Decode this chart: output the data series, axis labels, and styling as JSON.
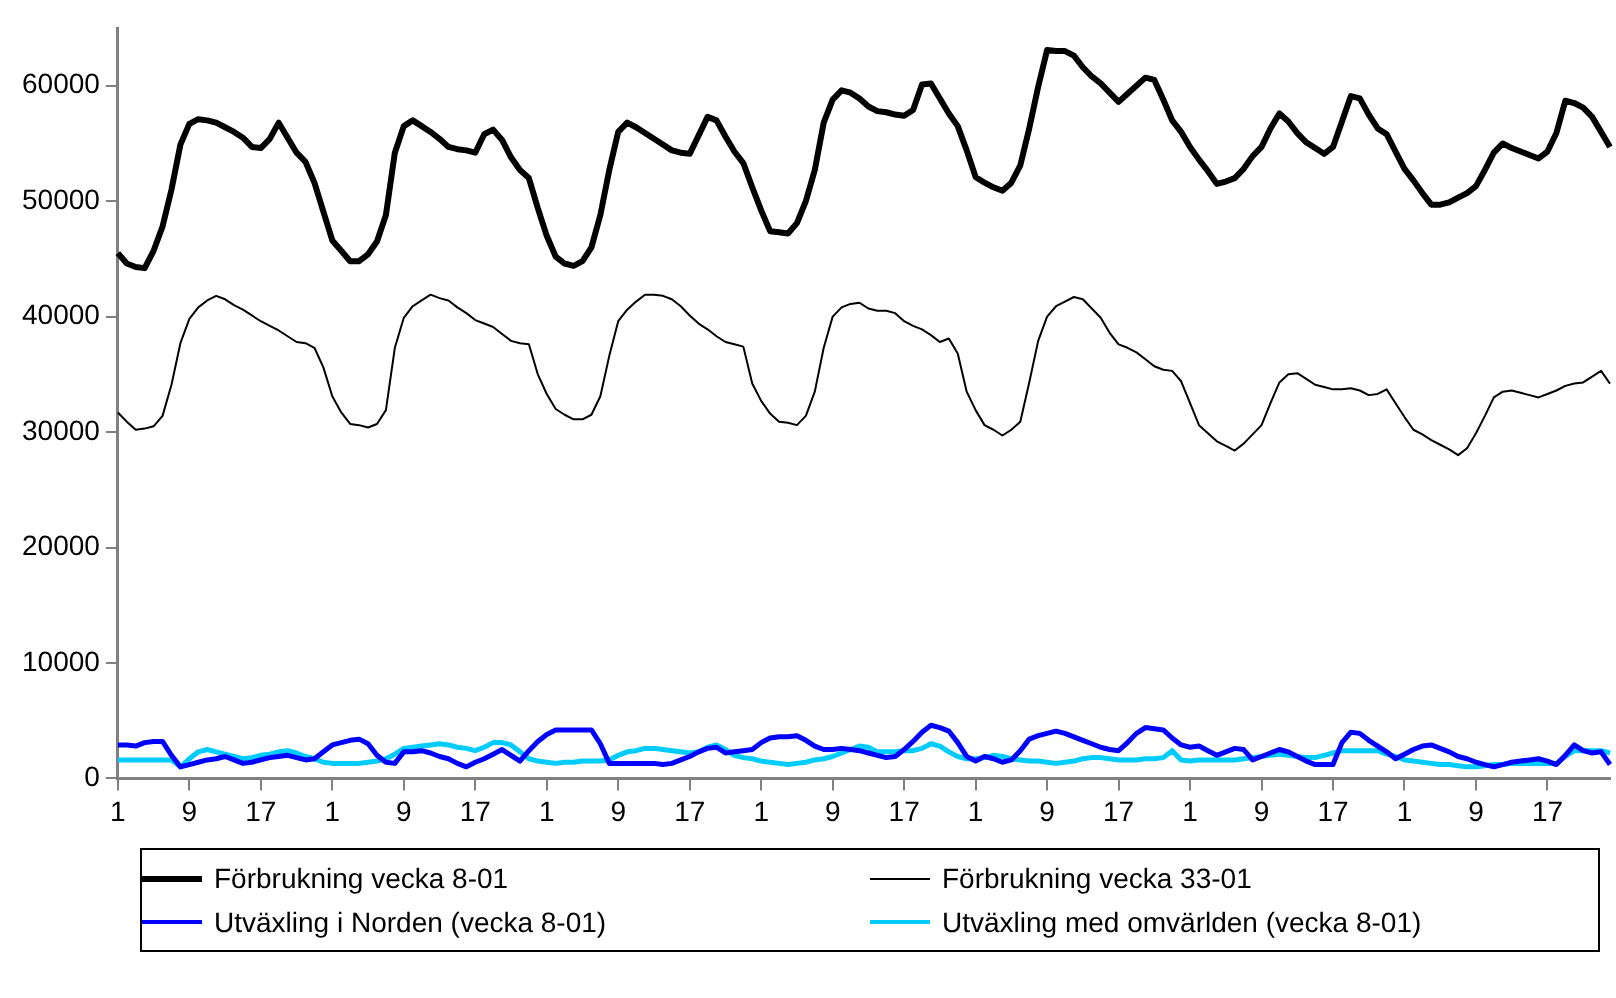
{
  "chart_data": {
    "type": "line",
    "categories": [
      "1",
      null,
      null,
      null,
      null,
      null,
      null,
      null,
      "9",
      null,
      null,
      null,
      null,
      null,
      null,
      null,
      "17",
      null,
      null,
      null,
      null,
      null,
      null,
      null,
      "1",
      null,
      null,
      null,
      null,
      null,
      null,
      null,
      "9",
      null,
      null,
      null,
      null,
      null,
      null,
      null,
      "17",
      null,
      null,
      null,
      null,
      null,
      null,
      null,
      "1",
      null,
      null,
      null,
      null,
      null,
      null,
      null,
      "9",
      null,
      null,
      null,
      null,
      null,
      null,
      null,
      "17",
      null,
      null,
      null,
      null,
      null,
      null,
      null,
      "1",
      null,
      null,
      null,
      null,
      null,
      null,
      null,
      "9",
      null,
      null,
      null,
      null,
      null,
      null,
      null,
      "17",
      null,
      null,
      null,
      null,
      null,
      null,
      null,
      "1",
      null,
      null,
      null,
      null,
      null,
      null,
      null,
      "9",
      null,
      null,
      null,
      null,
      null,
      null,
      null,
      "17",
      null,
      null,
      null,
      null,
      null,
      null,
      null,
      "1",
      null,
      null,
      null,
      null,
      null,
      null,
      null,
      "9",
      null,
      null,
      null,
      null,
      null,
      null,
      null,
      "17",
      null,
      null,
      null,
      null,
      null,
      null,
      null,
      "1",
      null,
      null,
      null,
      null,
      null,
      null,
      null,
      "9",
      null,
      null,
      null,
      null,
      null,
      null,
      null,
      "17",
      null,
      null,
      null,
      null,
      null,
      null,
      null
    ],
    "ylim": [
      0,
      65000
    ],
    "yticks": [
      0,
      10000,
      20000,
      30000,
      40000,
      50000,
      60000
    ],
    "grid": false,
    "legend": "bottom",
    "series": [
      {
        "name": "Förbrukning vecka 8-01",
        "color": "#000000",
        "values": [
          45500,
          44600,
          44300,
          44200,
          45700,
          47800,
          51000,
          54900,
          56700,
          57100,
          57000,
          56800,
          56400,
          56000,
          55500,
          54700,
          54600,
          55400,
          56800,
          55500,
          54200,
          53400,
          51600,
          49100,
          46600,
          45700,
          44800,
          44800,
          45400,
          46500,
          48800,
          54200,
          56500,
          57000,
          56500,
          56000,
          55400,
          54700,
          54500,
          54400,
          54200,
          55800,
          56200,
          55300,
          53800,
          52700,
          52000,
          49400,
          47000,
          45200,
          44600,
          44400,
          44800,
          46000,
          48800,
          52700,
          56000,
          56800,
          56400,
          55900,
          55400,
          54900,
          54400,
          54200,
          54100,
          55700,
          57300,
          57000,
          55600,
          54300,
          53300,
          51200,
          49200,
          47400,
          47300,
          47200,
          48100,
          50000,
          52700,
          56800,
          58800,
          59600,
          59400,
          58900,
          58200,
          57800,
          57700,
          57500,
          57400,
          57900,
          60100,
          60200,
          58900,
          57600,
          56500,
          54400,
          52100,
          51600,
          51200,
          50900,
          51600,
          53100,
          56300,
          59900,
          63100,
          63000,
          63000,
          62600,
          61600,
          60800,
          60200,
          59400,
          58600,
          59300,
          60000,
          60700,
          60500,
          58800,
          57000,
          56000,
          54700,
          53600,
          52600,
          51500,
          51700,
          52000,
          52800,
          53900,
          54700,
          56300,
          57600,
          56900,
          55900,
          55100,
          54600,
          54100,
          54700,
          56900,
          59100,
          58900,
          57500,
          56300,
          55800,
          54300,
          52800,
          51800,
          50700,
          49700,
          49700,
          49900,
          50300,
          50700,
          51300,
          52700,
          54200,
          55000,
          54600,
          54300,
          54000,
          53700,
          54300,
          55900,
          58700,
          58500,
          58100,
          57300,
          56000,
          54700
        ]
      },
      {
        "name": "Förbrukning vecka 33-01",
        "color": "#000000",
        "values": [
          31700,
          30900,
          30200,
          30300,
          30500,
          31400,
          34100,
          37700,
          39800,
          40800,
          41400,
          41800,
          41500,
          41000,
          40600,
          40100,
          39600,
          39200,
          38800,
          38300,
          37800,
          37700,
          37300,
          35600,
          33100,
          31700,
          30700,
          30600,
          30400,
          30700,
          31900,
          37300,
          39900,
          40900,
          41400,
          41900,
          41600,
          41400,
          40800,
          40300,
          39700,
          39400,
          39100,
          38500,
          37900,
          37700,
          37600,
          35000,
          33300,
          32000,
          31500,
          31100,
          31100,
          31500,
          33100,
          36600,
          39600,
          40600,
          41300,
          41900,
          41900,
          41800,
          41500,
          40900,
          40100,
          39400,
          38900,
          38300,
          37800,
          37600,
          37400,
          34200,
          32700,
          31600,
          30900,
          30800,
          30600,
          31400,
          33500,
          37300,
          40000,
          40800,
          41100,
          41200,
          40700,
          40500,
          40500,
          40300,
          39600,
          39200,
          38900,
          38400,
          37800,
          38100,
          36800,
          33500,
          31900,
          30600,
          30200,
          29700,
          30200,
          30900,
          34300,
          37900,
          40000,
          40900,
          41300,
          41700,
          41500,
          40700,
          39900,
          38600,
          37600,
          37300,
          36900,
          36300,
          35700,
          35400,
          35300,
          34400,
          32500,
          30600,
          29900,
          29200,
          28800,
          28400,
          29000,
          29800,
          30600,
          32500,
          34300,
          35000,
          35100,
          34600,
          34100,
          33900,
          33700,
          33700,
          33800,
          33600,
          33200,
          33300,
          33700,
          32500,
          31300,
          30200,
          29800,
          29300,
          28900,
          28500,
          28000,
          28600,
          29900,
          31400,
          33000,
          33500,
          33600,
          33400,
          33200,
          33000,
          33300,
          33600,
          34000,
          34200,
          34300,
          34800,
          35300,
          34200
        ]
      },
      {
        "name": "Utväxling i Norden (vecka 8-01)",
        "color": "#0000ff",
        "values": [
          2900,
          2900,
          2800,
          3100,
          3200,
          3200,
          2000,
          1000,
          1200,
          1400,
          1600,
          1700,
          1900,
          1600,
          1300,
          1400,
          1600,
          1800,
          1900,
          2000,
          1800,
          1600,
          1700,
          2300,
          2900,
          3100,
          3300,
          3400,
          3000,
          2000,
          1400,
          1300,
          2300,
          2300,
          2400,
          2200,
          1900,
          1700,
          1300,
          1000,
          1400,
          1700,
          2100,
          2500,
          2000,
          1500,
          2400,
          3200,
          3800,
          4200,
          4200,
          4200,
          4200,
          4200,
          3000,
          1300,
          1300,
          1300,
          1300,
          1300,
          1300,
          1200,
          1300,
          1600,
          1900,
          2300,
          2600,
          2700,
          2200,
          2300,
          2400,
          2500,
          3100,
          3500,
          3600,
          3600,
          3700,
          3300,
          2800,
          2500,
          2500,
          2600,
          2500,
          2400,
          2200,
          2000,
          1800,
          1900,
          2500,
          3200,
          4000,
          4600,
          4400,
          4100,
          3100,
          1900,
          1500,
          1900,
          1700,
          1400,
          1600,
          2400,
          3400,
          3700,
          3900,
          4100,
          3900,
          3600,
          3300,
          3000,
          2700,
          2500,
          2400,
          3100,
          3900,
          4400,
          4300,
          4200,
          3500,
          2900,
          2700,
          2800,
          2400,
          2000,
          2300,
          2600,
          2500,
          1600,
          1900,
          2200,
          2500,
          2300,
          1900,
          1500,
          1200,
          1200,
          1200,
          3100,
          4000,
          3900,
          3300,
          2800,
          2300,
          1700,
          2100,
          2500,
          2800,
          2900,
          2600,
          2300,
          1900,
          1700,
          1400,
          1200,
          1000,
          1200,
          1400,
          1500,
          1600,
          1700,
          1500,
          1200,
          2000,
          2900,
          2400,
          2200,
          2300,
          1200
        ]
      },
      {
        "name": "Utväxling med omvärlden (vecka 8-01)",
        "color": "#00ccff",
        "values": [
          1600,
          1600,
          1600,
          1600,
          1600,
          1600,
          1600,
          1000,
          1700,
          2300,
          2500,
          2300,
          2100,
          1900,
          1700,
          1800,
          2000,
          2100,
          2300,
          2400,
          2200,
          1900,
          1700,
          1400,
          1300,
          1300,
          1300,
          1300,
          1400,
          1500,
          1700,
          2100,
          2600,
          2700,
          2800,
          2900,
          3000,
          2900,
          2700,
          2600,
          2400,
          2700,
          3100,
          3100,
          2900,
          2300,
          1700,
          1500,
          1400,
          1300,
          1400,
          1400,
          1500,
          1500,
          1500,
          1600,
          2000,
          2300,
          2400,
          2600,
          2600,
          2500,
          2400,
          2300,
          2200,
          2300,
          2700,
          2900,
          2500,
          2000,
          1800,
          1700,
          1500,
          1400,
          1300,
          1200,
          1300,
          1400,
          1600,
          1700,
          1900,
          2200,
          2500,
          2800,
          2700,
          2300,
          2300,
          2300,
          2400,
          2400,
          2600,
          3000,
          2800,
          2300,
          1900,
          1700,
          1700,
          1800,
          2000,
          1900,
          1700,
          1600,
          1500,
          1500,
          1400,
          1300,
          1400,
          1500,
          1700,
          1800,
          1800,
          1700,
          1600,
          1600,
          1600,
          1700,
          1700,
          1800,
          2400,
          1600,
          1500,
          1600,
          1600,
          1600,
          1600,
          1600,
          1700,
          1800,
          1900,
          2000,
          2100,
          2000,
          1900,
          1800,
          1800,
          2000,
          2200,
          2400,
          2400,
          2400,
          2400,
          2400,
          2100,
          1900,
          1600,
          1500,
          1400,
          1300,
          1200,
          1200,
          1100,
          1000,
          1000,
          1100,
          1200,
          1200,
          1300,
          1300,
          1300,
          1300,
          1300,
          1300,
          1900,
          2400,
          2400,
          2400,
          2400,
          2200
        ]
      }
    ]
  }
}
